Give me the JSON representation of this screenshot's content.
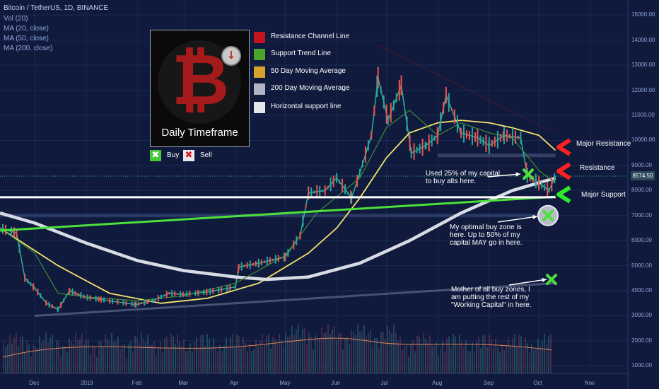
{
  "header": {
    "title": "Bitcoin / TetherUS, 1D, BINANCE",
    "studies": [
      "Vol (20)",
      "MA (20, close)",
      "MA (50, close)",
      "MA (200, close)"
    ]
  },
  "legend": {
    "timeframe": "Daily Timeframe",
    "items": [
      {
        "label": "Resistance Channel Line",
        "color": "#c4141e"
      },
      {
        "label": "Support Trend Line",
        "color": "#4aa52a"
      },
      {
        "label": "50 Day Moving Average",
        "color": "#d7a22b"
      },
      {
        "label": "200 Day Moving Average",
        "color": "#b0b4c4"
      },
      {
        "label": "Horizontal support line",
        "color": "#e6e6ea"
      }
    ],
    "buy_label": "Buy",
    "sell_label": "Sell"
  },
  "annotations": {
    "major_resistance": "Major Resistance",
    "resistance": "Resistance",
    "major_support": "Major Support",
    "used_25": "Used 25% of my capital to buy alts here.",
    "optimal_zone": "My optimal buy zone is here. Up to 50% of my capital MAY go in here.",
    "mother_zone": "Mother of all buy zones, I am putting the rest of my \"Working Capital\" in here."
  },
  "current_price": "8574.50",
  "chart_data": {
    "type": "line",
    "title": "Bitcoin / TetherUS, 1D, BINANCE",
    "x_ticks": [
      "Dec",
      "2019",
      "Feb",
      "Mar",
      "Apr",
      "May",
      "Jun",
      "Jul",
      "Aug",
      "Sep",
      "Oct",
      "Nov"
    ],
    "y_ticks": [
      1000,
      2000,
      3000,
      4000,
      5000,
      6000,
      7000,
      8000,
      9000,
      10000,
      11000,
      12000,
      13000,
      14000,
      15000
    ],
    "y_tick_labels": [
      "1000.00",
      "2000.00",
      "3000.00",
      "4000.00",
      "5000.00",
      "6000.00",
      "7000.00",
      "8000.00",
      "9000.00",
      "10000.00",
      "11000.00",
      "12000.00",
      "13000.00",
      "14000.00",
      "15000.00"
    ],
    "ylim": [
      700,
      15600
    ],
    "grid": true,
    "series": [
      {
        "name": "BTCUSDT close",
        "color": "#2ea98f",
        "x": [
          "2018-11-10",
          "2018-11-20",
          "2018-11-25",
          "2018-12-01",
          "2018-12-08",
          "2018-12-15",
          "2018-12-22",
          "2018-12-31",
          "2019-01-10",
          "2019-01-20",
          "2019-01-31",
          "2019-02-10",
          "2019-02-20",
          "2019-03-01",
          "2019-03-15",
          "2019-04-01",
          "2019-04-03",
          "2019-04-15",
          "2019-05-01",
          "2019-05-10",
          "2019-05-15",
          "2019-05-25",
          "2019-06-01",
          "2019-06-10",
          "2019-06-15",
          "2019-06-22",
          "2019-06-26",
          "2019-07-02",
          "2019-07-10",
          "2019-07-16",
          "2019-07-25",
          "2019-08-01",
          "2019-08-06",
          "2019-08-15",
          "2019-08-25",
          "2019-09-01",
          "2019-09-10",
          "2019-09-20",
          "2019-09-24",
          "2019-10-01",
          "2019-10-07",
          "2019-10-11"
        ],
        "values": [
          6500,
          6300,
          4500,
          4100,
          3500,
          3250,
          4000,
          3750,
          3650,
          3550,
          3450,
          3600,
          3900,
          3850,
          3950,
          4150,
          4950,
          5100,
          5350,
          6200,
          7900,
          8000,
          8500,
          7700,
          8700,
          10200,
          12500,
          10800,
          12200,
          9500,
          9800,
          10200,
          11800,
          10300,
          10100,
          9800,
          10200,
          10100,
          8600,
          8300,
          8000,
          8574.5
        ]
      },
      {
        "name": "MA (50, close)",
        "color": "#f4e36c",
        "x": [
          "2018-11-10",
          "2018-12-15",
          "2019-01-15",
          "2019-02-15",
          "2019-03-15",
          "2019-04-15",
          "2019-05-15",
          "2019-06-01",
          "2019-06-15",
          "2019-07-01",
          "2019-07-15",
          "2019-08-01",
          "2019-08-15",
          "2019-09-01",
          "2019-09-15",
          "2019-10-01",
          "2019-10-11"
        ],
        "values": [
          6500,
          5000,
          3900,
          3500,
          3700,
          4300,
          5500,
          6500,
          7700,
          9300,
          10300,
          10700,
          10800,
          10700,
          10500,
          10200,
          9600
        ]
      },
      {
        "name": "MA (200, close)",
        "color": "#d8dbe4",
        "x": [
          "2018-11-10",
          "2018-12-01",
          "2019-01-01",
          "2019-02-01",
          "2019-03-01",
          "2019-04-01",
          "2019-04-20",
          "2019-05-15",
          "2019-06-15",
          "2019-07-15",
          "2019-08-15",
          "2019-09-15",
          "2019-10-11"
        ],
        "values": [
          7100,
          6700,
          5900,
          5200,
          4800,
          4550,
          4450,
          4550,
          5100,
          6000,
          7100,
          8000,
          8500
        ]
      },
      {
        "name": "MA (20, close)",
        "color": "#3d8d3a",
        "x": [
          "2018-11-10",
          "2018-12-01",
          "2018-12-15",
          "2019-01-01",
          "2019-02-01",
          "2019-03-01",
          "2019-04-01",
          "2019-05-01",
          "2019-05-20",
          "2019-06-15",
          "2019-07-01",
          "2019-07-15",
          "2019-08-01",
          "2019-08-15",
          "2019-09-01",
          "2019-09-15",
          "2019-10-01",
          "2019-10-11"
        ],
        "values": [
          6500,
          5500,
          3900,
          3750,
          3600,
          3800,
          4300,
          5400,
          7100,
          8500,
          10500,
          11200,
          10200,
          10700,
          10300,
          10100,
          8800,
          8300
        ]
      }
    ],
    "lines": [
      {
        "name": "Support Trend Line",
        "color": "#4be13a",
        "from": [
          "2018-11-10",
          6400
        ],
        "to": [
          "2019-10-11",
          7750
        ]
      },
      {
        "name": "Horizontal support line",
        "color": "#ffffff",
        "from": [
          "2018-11-10",
          7730
        ],
        "to": [
          "2019-10-11",
          7730
        ]
      }
    ]
  }
}
